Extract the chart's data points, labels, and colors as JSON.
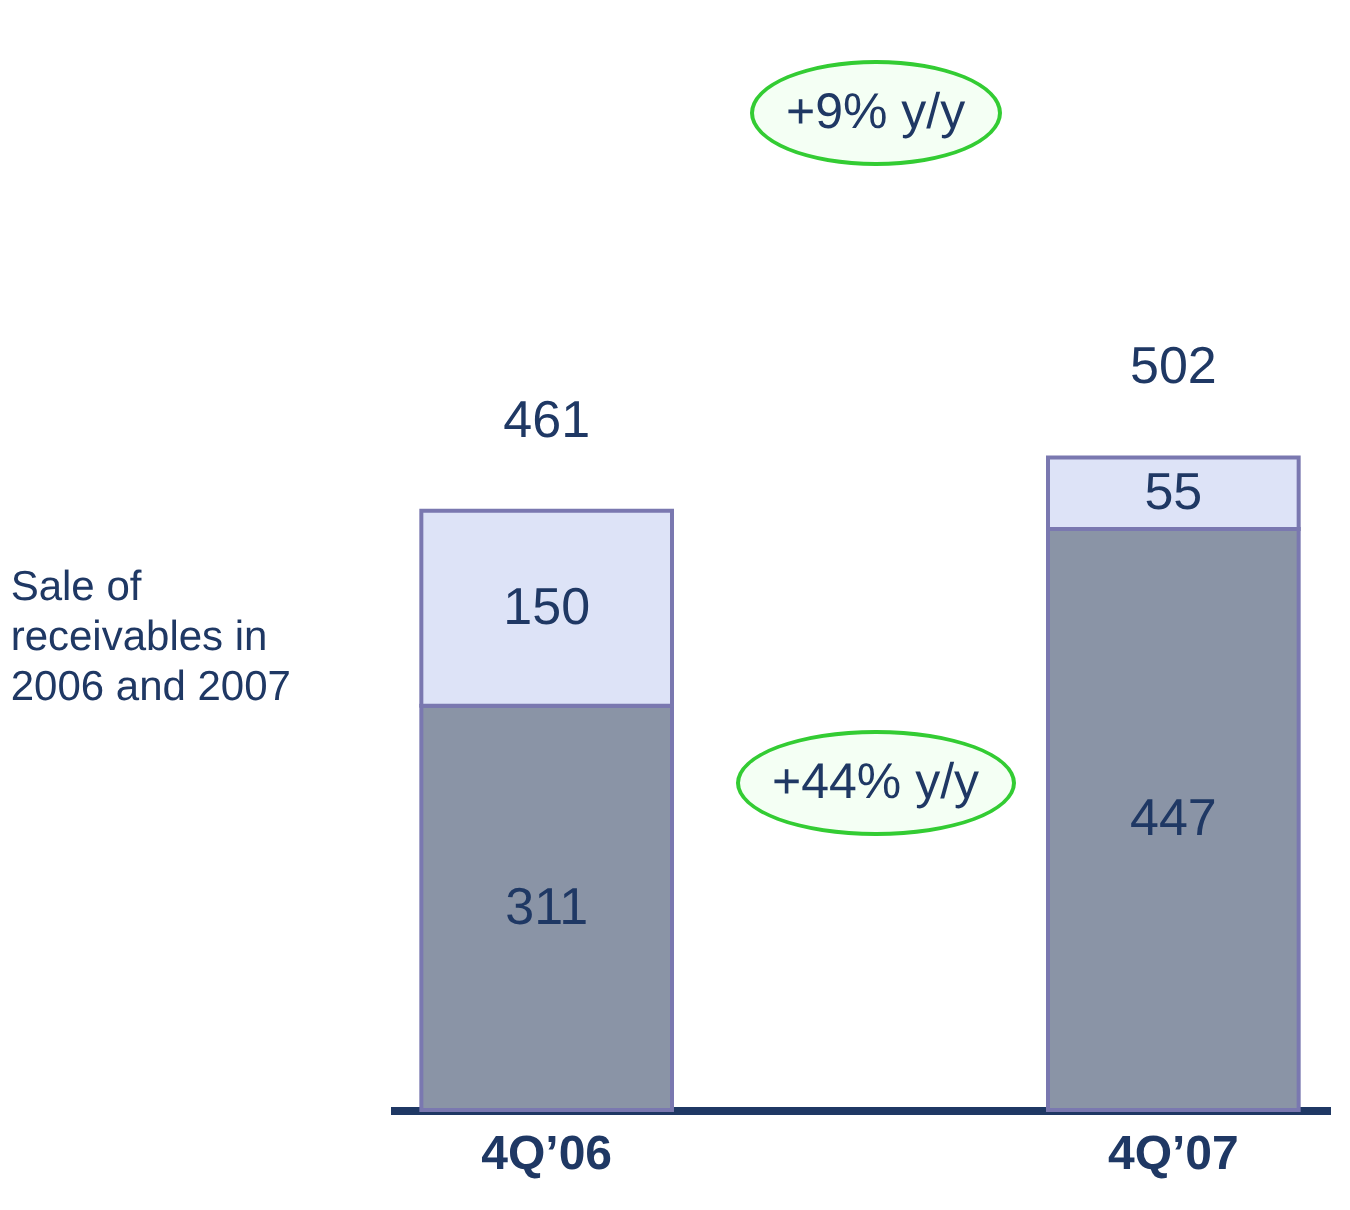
{
  "chart_data": {
    "type": "bar",
    "stacked": true,
    "categories": [
      "4Q’06",
      "4Q’07"
    ],
    "series": [
      {
        "color": "#8a94a6",
        "values": [
          311,
          447
        ]
      },
      {
        "name": "Sale of receivables in 2006 and 2007",
        "color": "#dde3f7",
        "values": [
          150,
          55
        ]
      }
    ],
    "data_labels": true,
    "totals": [
      "461",
      "502"
    ],
    "annotations": [
      "+9% y/y",
      "+44% y/y"
    ]
  }
}
